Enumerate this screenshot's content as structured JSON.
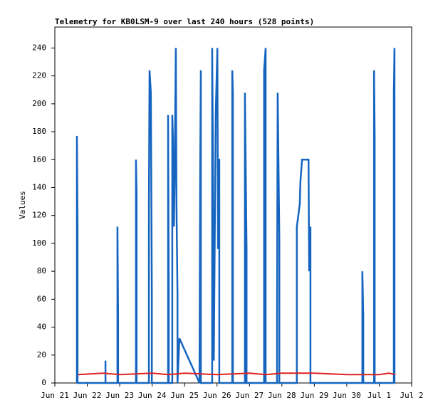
{
  "chart_data": {
    "type": "line",
    "title": "Telemetry for KB0LSM-9 over last 240 hours (528 points)",
    "y_label": "Values",
    "xlim": [
      0,
      11
    ],
    "xticks": [
      {
        "value": 0,
        "label": "Jun 21"
      },
      {
        "value": 1,
        "label": "Jun 22"
      },
      {
        "value": 2,
        "label": "Jun 23"
      },
      {
        "value": 3,
        "label": "Jun 24"
      },
      {
        "value": 4,
        "label": "Jun 25"
      },
      {
        "value": 5,
        "label": "Jun 26"
      },
      {
        "value": 6,
        "label": "Jun 27"
      },
      {
        "value": 7,
        "label": "Jun 28"
      },
      {
        "value": 8,
        "label": "Jun 29"
      },
      {
        "value": 9,
        "label": "Jun 30"
      },
      {
        "value": 10,
        "label": "Jul 1"
      },
      {
        "value": 11,
        "label": "Jul 2"
      }
    ],
    "ylim": [
      0,
      255
    ],
    "yticks": [
      0,
      20,
      40,
      60,
      80,
      100,
      120,
      140,
      160,
      180,
      200,
      220,
      240
    ],
    "series": [
      {
        "color": "#1565c0",
        "x": [
          0.68,
          0.68,
          0.7,
          0.7,
          1.56,
          1.56,
          1.56,
          1.93,
          1.93,
          1.95,
          1.95,
          2.5,
          2.5,
          2.52,
          2.52,
          2.9,
          2.9,
          2.92,
          2.96,
          2.99,
          2.99,
          3.49,
          3.49,
          3.51,
          3.51,
          3.62,
          3.62,
          3.64,
          3.67,
          3.69,
          3.73,
          3.75,
          3.78,
          3.78,
          3.84,
          4.46,
          4.48,
          4.5,
          4.5,
          4.85,
          4.85,
          4.87,
          4.9,
          4.96,
          5.01,
          5.03,
          5.05,
          5.07,
          5.07,
          5.47,
          5.47,
          5.49,
          5.49,
          5.86,
          5.86,
          5.91,
          5.91,
          6.45,
          6.45,
          6.5,
          6.5,
          6.85,
          6.85,
          6.87,
          6.92,
          6.92,
          7.46,
          7.46,
          7.55,
          7.57,
          7.62,
          7.82,
          7.84,
          7.88,
          7.88,
          9.48,
          9.48,
          9.51,
          9.51,
          9.84,
          9.84,
          9.86,
          9.86,
          10.45,
          10.45,
          10.47,
          10.47
        ],
        "values": [
          0,
          177,
          112,
          0,
          0,
          16,
          0,
          0,
          112,
          48,
          0,
          0,
          160,
          136,
          0,
          0,
          128,
          224,
          208,
          64,
          0,
          0,
          192,
          72,
          0,
          0,
          192,
          176,
          112,
          144,
          240,
          128,
          64,
          0,
          32,
          0,
          144,
          224,
          0,
          0,
          240,
          176,
          16,
          192,
          240,
          96,
          160,
          160,
          0,
          0,
          224,
          208,
          0,
          0,
          208,
          96,
          0,
          0,
          224,
          240,
          0,
          0,
          48,
          208,
          104,
          0,
          0,
          112,
          128,
          144,
          160,
          160,
          80,
          112,
          0,
          0,
          80,
          48,
          0,
          0,
          224,
          176,
          0,
          0,
          208,
          240,
          0
        ]
      },
      {
        "color": "#e02020",
        "x": [
          0.72,
          1.5,
          2.0,
          3.0,
          3.5,
          4.0,
          5.0,
          6.0,
          6.5,
          7.0,
          8.0,
          9.0,
          10.0,
          10.3,
          10.5
        ],
        "values": [
          6,
          7,
          6,
          7,
          6,
          7,
          6,
          7,
          6,
          7,
          7,
          6,
          6,
          7,
          6
        ]
      }
    ]
  }
}
